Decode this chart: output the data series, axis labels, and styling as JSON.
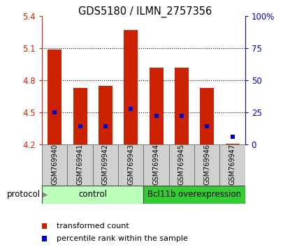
{
  "title": "GDS5180 / ILMN_2757356",
  "samples": [
    "GSM769940",
    "GSM769941",
    "GSM769942",
    "GSM769943",
    "GSM769944",
    "GSM769945",
    "GSM769946",
    "GSM769947"
  ],
  "red_values": [
    5.09,
    4.73,
    4.75,
    5.27,
    4.92,
    4.92,
    4.73,
    4.21
  ],
  "blue_values": [
    4.5,
    4.37,
    4.37,
    4.53,
    4.47,
    4.47,
    4.37,
    4.27
  ],
  "ymin": 4.2,
  "ymax": 5.4,
  "yticks_left": [
    4.2,
    4.5,
    4.8,
    5.1,
    5.4
  ],
  "yticks_right": [
    0,
    25,
    50,
    75,
    100
  ],
  "yticks_right_labels": [
    "0",
    "25",
    "50",
    "75",
    "100%"
  ],
  "bar_width": 0.55,
  "bar_color": "#cc2200",
  "blue_color": "#0000cc",
  "control_color_light": "#ccffcc",
  "control_color_dark": "#44dd44",
  "control_label": "control",
  "overexpr_label": "Bcl11b overexpression",
  "protocol_label": "protocol",
  "legend_red": "transformed count",
  "legend_blue": "percentile rank within the sample",
  "tick_color_left": "#cc2200",
  "tick_color_right": "#0000cc",
  "sample_box_color": "#d0d0d0",
  "grid_yticks": [
    4.5,
    4.8,
    5.1
  ]
}
